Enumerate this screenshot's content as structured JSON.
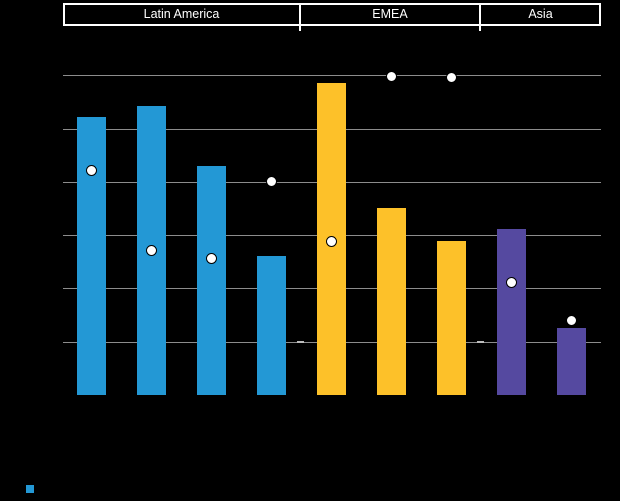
{
  "colors": {
    "background": "#000000",
    "blue": "#2398d5",
    "yellow": "#fdc129",
    "purple": "#5549a0",
    "gridline": "#8c8c8c",
    "header_border": "#ffffff",
    "header_text": "#ffffff",
    "marker_fill": "#ffffff",
    "marker_stroke": "#000000"
  },
  "legend": {
    "position": "bottom-left",
    "swatch_color": "#2398d5",
    "label": ""
  },
  "chart_data": {
    "type": "bar",
    "subtype": "grouped vertical bars with white circle scatter markers overlaid",
    "title": "",
    "xlabel": "",
    "ylabel": "",
    "ylim": [
      0,
      60
    ],
    "gridline_interval": 10,
    "grid": true,
    "ytick_labels_visible": false,
    "xtick_labels_visible": false,
    "legend_position": "bottom-left",
    "groups": [
      {
        "label": "Latin America",
        "bar_color": "#2398d5",
        "bars": [
          {
            "bar_value": 52.3,
            "marker_value": 42.2
          },
          {
            "bar_value": 54.3,
            "marker_value": 27.2
          },
          {
            "bar_value": 43.1,
            "marker_value": 25.8
          },
          {
            "bar_value": 26.2,
            "marker_value": 40.2
          }
        ]
      },
      {
        "label": "EMEA",
        "bar_color": "#fdc129",
        "bars": [
          {
            "bar_value": 58.7,
            "marker_value": 28.9
          },
          {
            "bar_value": 35.2,
            "marker_value": 59.8
          },
          {
            "bar_value": 29.0,
            "marker_value": 59.6
          }
        ]
      },
      {
        "label": "Asia",
        "bar_color": "#5549a0",
        "bars": [
          {
            "bar_value": 31.2,
            "marker_value": 21.2
          },
          {
            "bar_value": 12.7,
            "marker_value": 14.1
          }
        ]
      }
    ]
  }
}
